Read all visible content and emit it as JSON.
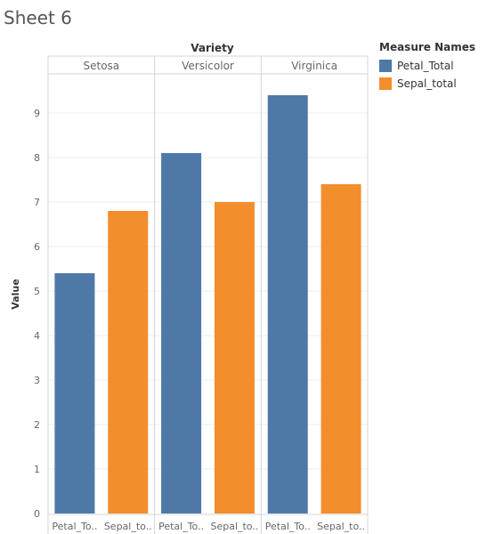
{
  "sheet_title": "Sheet 6",
  "legend": {
    "title": "Measure Names",
    "items": [
      {
        "label": "Petal_Total",
        "color": "#4e79a7"
      },
      {
        "label": "Sepal_total",
        "color": "#f28e2b"
      }
    ]
  },
  "chart_data": {
    "type": "bar",
    "column_header": "Variety",
    "ylabel": "Value",
    "ylim": [
      0,
      10
    ],
    "yticks": [
      0,
      1,
      2,
      3,
      4,
      5,
      6,
      7,
      8,
      9
    ],
    "grid": true,
    "panels": [
      {
        "name": "Setosa",
        "bars": [
          {
            "measure": "Petal_Total",
            "tick_label": "Petal_To..",
            "value": 5.4
          },
          {
            "measure": "Sepal_total",
            "tick_label": "Sepal_to..",
            "value": 6.8
          }
        ]
      },
      {
        "name": "Versicolor",
        "bars": [
          {
            "measure": "Petal_Total",
            "tick_label": "Petal_To..",
            "value": 8.1
          },
          {
            "measure": "Sepal_total",
            "tick_label": "Sepal_to..",
            "value": 7.0
          }
        ]
      },
      {
        "name": "Virginica",
        "bars": [
          {
            "measure": "Petal_Total",
            "tick_label": "Petal_To..",
            "value": 9.4
          },
          {
            "measure": "Sepal_total",
            "tick_label": "Sepal_to..",
            "value": 7.4
          }
        ]
      }
    ]
  }
}
